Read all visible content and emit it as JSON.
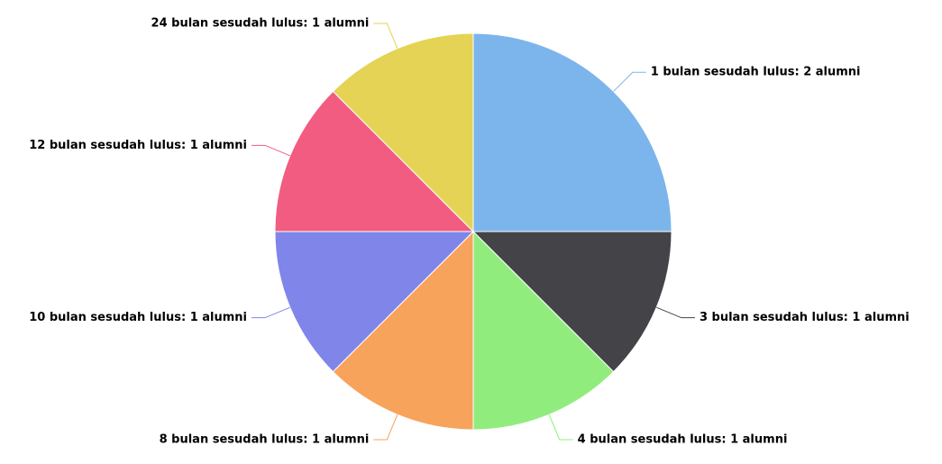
{
  "chart_data": {
    "type": "pie",
    "values": [
      2,
      1,
      1,
      1,
      1,
      1,
      1
    ],
    "value_labels": [
      "1 bulan sesudah lulus: 2 alumni",
      "3 bulan sesudah lulus: 1 alumni",
      "4 bulan sesudah lulus: 1 alumni",
      "8 bulan sesudah lulus: 1 alumni",
      "10 bulan sesudah lulus: 1 alumni",
      "12 bulan sesudah lulus: 1 alumni",
      "24 bulan sesudah lulus: 1 alumni"
    ],
    "colors": [
      "#7cb5ec",
      "#434348",
      "#90ed7d",
      "#f7a35c",
      "#8085e9",
      "#f15c80",
      "#e4d354"
    ]
  }
}
